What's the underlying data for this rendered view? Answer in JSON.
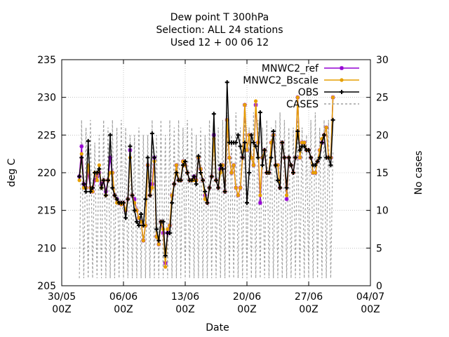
{
  "chart_data": {
    "type": "line",
    "title_lines": [
      "Dew point T 300hPa",
      "Selection: ALL      24 stations",
      "Used 12 + 00 06 12"
    ],
    "xlabel": "Date",
    "ylabel": "deg C",
    "y2label": "No cases",
    "xlim": [
      "2022-05-30T00:00",
      "2022-07-04T00:00"
    ],
    "ylim": [
      205,
      235
    ],
    "y2lim": [
      0,
      30
    ],
    "grid": true,
    "legend_position": "top-right",
    "x_ticks": [
      {
        "date": "2022-05-30T00:00",
        "label": [
          "30/05",
          "00Z"
        ]
      },
      {
        "date": "2022-06-06T00:00",
        "label": [
          "06/06",
          "00Z"
        ]
      },
      {
        "date": "2022-06-13T00:00",
        "label": [
          "13/06",
          "00Z"
        ]
      },
      {
        "date": "2022-06-20T00:00",
        "label": [
          "20/06",
          "00Z"
        ]
      },
      {
        "date": "2022-06-27T00:00",
        "label": [
          "27/06",
          "00Z"
        ]
      },
      {
        "date": "2022-07-04T00:00",
        "label": [
          "04/07",
          "00Z"
        ]
      }
    ],
    "y_ticks": [
      205,
      210,
      215,
      220,
      225,
      230,
      235
    ],
    "y2_ticks": [
      0,
      5,
      10,
      15,
      20,
      25,
      30
    ],
    "x_start": "2022-06-01T00:00",
    "x_step_hours": 6,
    "series": [
      {
        "name": "MNWC2_ref",
        "axis": "y",
        "color": "#9400d3",
        "dash": "",
        "marker": "star",
        "values": [
          219.5,
          223.5,
          218.5,
          218,
          220,
          218,
          217.5,
          219,
          219.5,
          220,
          218.5,
          219,
          217.5,
          219,
          222,
          220,
          217,
          216.5,
          216,
          215.8,
          216,
          215,
          216.5,
          223,
          217,
          216.5,
          215,
          214,
          213.5,
          211,
          213,
          221,
          217,
          218.5,
          222,
          211.5,
          210.5,
          213.5,
          212,
          208,
          212,
          213,
          217,
          218.5,
          221,
          219,
          219,
          221.5,
          221,
          220,
          219,
          219,
          219.5,
          219,
          222,
          220.5,
          219,
          217,
          216,
          218,
          219.5,
          225,
          219,
          218,
          220.5,
          221,
          217.5,
          227,
          222,
          220,
          221,
          218,
          217,
          218,
          222,
          229,
          223,
          225,
          222,
          221,
          229,
          224,
          216,
          222,
          223,
          220,
          220,
          224,
          225,
          221,
          221,
          218,
          224,
          222,
          216.5,
          222,
          221,
          220,
          222,
          230,
          222,
          224,
          224,
          223,
          223,
          222,
          220,
          220,
          221.5,
          223,
          224,
          225,
          226,
          222,
          222,
          230
        ]
      },
      {
        "name": "MNWC2_Bscale",
        "axis": "y",
        "color": "#e69f00",
        "dash": "",
        "marker": "circle",
        "values": [
          219,
          222.5,
          218,
          218,
          221,
          218,
          217.5,
          220,
          219,
          221,
          218,
          219,
          217,
          219,
          220,
          220,
          217,
          216,
          216,
          215.8,
          216,
          215,
          216.5,
          222,
          217,
          216,
          215,
          214,
          213.5,
          211,
          213,
          221,
          217,
          218,
          221.5,
          211.5,
          210.5,
          213.5,
          212.5,
          207.5,
          212.5,
          213,
          217,
          218.5,
          221,
          219,
          219,
          221.5,
          221,
          220,
          219,
          219,
          219,
          219,
          222,
          220.5,
          219,
          216.5,
          216,
          218,
          219.5,
          224.5,
          219,
          218,
          220,
          221,
          217.5,
          227,
          222,
          220,
          221,
          218,
          217,
          218,
          222,
          229,
          223,
          225,
          222,
          221,
          229.5,
          224,
          217,
          222,
          223,
          220,
          220,
          224,
          225,
          221,
          221,
          218,
          224,
          222,
          217,
          222,
          221,
          220,
          222,
          230,
          222,
          224,
          224,
          223,
          223,
          222,
          220,
          220,
          221.5,
          223,
          224.5,
          225,
          226,
          222,
          222,
          230
        ]
      },
      {
        "name": "OBS",
        "axis": "y",
        "color": "#000000",
        "dash": "",
        "marker": "plus",
        "values": [
          219.5,
          222,
          218.5,
          217.5,
          224.2,
          217.5,
          218,
          220,
          220,
          220.5,
          218,
          219,
          217,
          219,
          225,
          218,
          217,
          216.5,
          216,
          216,
          216,
          214,
          216.5,
          223.5,
          217,
          215,
          213.5,
          213,
          214.5,
          213,
          216.5,
          222,
          217,
          225.2,
          222,
          212.5,
          211,
          213.5,
          213.5,
          209,
          212,
          212,
          216,
          218.5,
          220,
          219,
          219,
          221,
          221.5,
          220,
          219,
          219,
          219.5,
          218.5,
          222.2,
          220,
          219,
          217.5,
          216,
          218,
          219.5,
          227.8,
          219,
          218,
          221,
          220.5,
          217.5,
          232,
          224,
          224,
          224,
          224,
          225,
          223.5,
          222,
          224,
          216,
          220,
          225,
          224,
          223.5,
          222,
          228,
          221,
          223,
          220,
          220,
          222,
          225.5,
          221,
          219,
          218,
          224,
          222,
          218,
          222,
          221,
          220,
          222,
          225.5,
          223,
          223.5,
          223.5,
          223,
          223,
          222,
          221,
          221,
          221.5,
          222,
          224,
          225,
          222,
          222,
          221,
          227
        ]
      },
      {
        "name": "CASES",
        "axis": "y2",
        "color": "#a0a0a0",
        "dash": "3,3",
        "marker": "none",
        "values": [
          1,
          22,
          1,
          21,
          1,
          22,
          1,
          19,
          1,
          20,
          1,
          22,
          1,
          21,
          1,
          22,
          1,
          21,
          1,
          22,
          1,
          21,
          1,
          20,
          1,
          20,
          1,
          21,
          1,
          20,
          1,
          20,
          1,
          22,
          1,
          20,
          1,
          22,
          1,
          20,
          1,
          22,
          1,
          21,
          1,
          22,
          1,
          21,
          1,
          22,
          1,
          21,
          1,
          20,
          1,
          21,
          1,
          20,
          1,
          22,
          1,
          22,
          1,
          21,
          1,
          22,
          1,
          23,
          1,
          20,
          1,
          23,
          1,
          21,
          1,
          22,
          1,
          21,
          1,
          23,
          1,
          22,
          1,
          21,
          1,
          22,
          1,
          21,
          1,
          22,
          1,
          23,
          1,
          22,
          1,
          21,
          1,
          21,
          1,
          22,
          1,
          21,
          1,
          20,
          1,
          22,
          1,
          23,
          1,
          21,
          1,
          22,
          1,
          22,
          1,
          18
        ]
      }
    ]
  }
}
